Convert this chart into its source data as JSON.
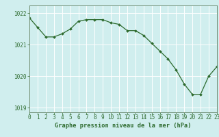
{
  "hours": [
    0,
    1,
    2,
    3,
    4,
    5,
    6,
    7,
    8,
    9,
    10,
    11,
    12,
    13,
    14,
    15,
    16,
    17,
    18,
    19,
    20,
    21,
    22,
    23
  ],
  "pressure": [
    1021.85,
    1021.55,
    1021.25,
    1021.25,
    1021.35,
    1021.5,
    1021.75,
    1021.8,
    1021.8,
    1021.8,
    1021.7,
    1021.65,
    1021.45,
    1021.45,
    1021.3,
    1021.05,
    1020.8,
    1020.55,
    1020.2,
    1019.75,
    1019.42,
    1019.42,
    1020.0,
    1020.3
  ],
  "line_color": "#2d6a2d",
  "marker": "D",
  "marker_size": 2.0,
  "bg_color": "#d0eeee",
  "grid_color": "#ffffff",
  "xlabel": "Graphe pression niveau de la mer (hPa)",
  "xlabel_color": "#2d6a2d",
  "tick_color": "#2d6a2d",
  "axis_color": "#5a7a5a",
  "ylim": [
    1018.85,
    1022.25
  ],
  "xlim": [
    0,
    23
  ],
  "yticks": [
    1019,
    1020,
    1021,
    1022
  ],
  "ytick_labels": [
    "1019",
    "1020",
    "1021",
    "1022"
  ],
  "xticks": [
    0,
    1,
    2,
    3,
    4,
    5,
    6,
    7,
    8,
    9,
    10,
    11,
    12,
    13,
    14,
    15,
    16,
    17,
    18,
    19,
    20,
    21,
    22,
    23
  ],
  "xtick_labels": [
    "0",
    "1",
    "2",
    "3",
    "4",
    "5",
    "6",
    "7",
    "8",
    "9",
    "10",
    "11",
    "12",
    "13",
    "14",
    "15",
    "16",
    "17",
    "18",
    "19",
    "20",
    "21",
    "22",
    "23"
  ],
  "tick_fontsize": 5.5,
  "xlabel_fontsize": 6.2
}
